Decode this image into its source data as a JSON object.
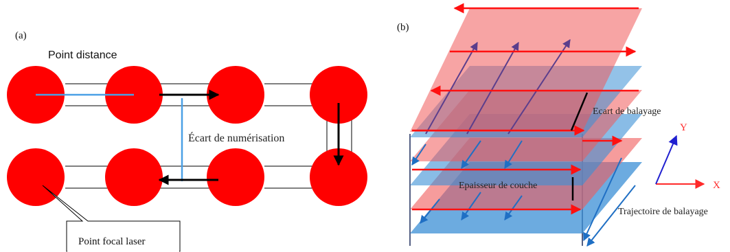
{
  "panel_a": {
    "tag": "(a)",
    "point_distance_label": "Point distance",
    "scan_spacing_label": "Écart de numérisation",
    "focal_point_label": "Point focal laser",
    "spot_color": "#ff0000",
    "distance_line_color": "#4aa0e6"
  },
  "panel_b": {
    "tag": "(b)",
    "hatch_spacing_label": "Ecart de balayage",
    "layer_thickness_label": "Epaisseur de couche",
    "scan_path_label": "Trajectoire de balayage",
    "axis_x_label": "X",
    "axis_y_label": "Y",
    "red_layer_color": "#f05a5a",
    "blue_layer_color": "#3b8fd6",
    "red_arrow_color": "#ff1010",
    "blue_arrow_color": "#1f6fc4"
  }
}
